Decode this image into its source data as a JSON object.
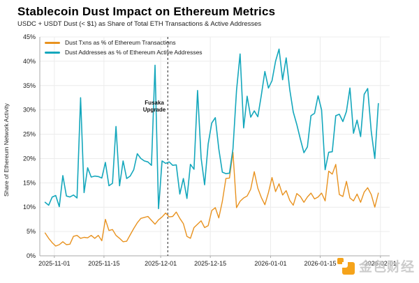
{
  "header": {
    "title": "Stablecoin Dust Impact on Ethereum Metrics",
    "subtitle": "USDC + USDT Dust (< $1) as Share of Total ETH Transactions & Active Addresses"
  },
  "watermark": {
    "text": "金色财经",
    "accent_color": "#F5A31A",
    "text_color": "#BBBBBB"
  },
  "chart_data": {
    "type": "line",
    "title": "Stablecoin Dust Impact on Ethereum Metrics",
    "subtitle": "USDC + USDT Dust (< $1) as Share of Total ETH Transactions & Active Addresses",
    "xlabel": "",
    "ylabel": "Share of Ethereum Network Activity",
    "ylim": [
      0,
      45
    ],
    "x_domain": [
      -1.5,
      97.2
    ],
    "x_unit": "days (daily data points, index 0 = first plotted day, late Oct 2025)",
    "grid": "on",
    "legend_position": "upper-left",
    "y_ticks": [
      {
        "v": 0,
        "label": "0%"
      },
      {
        "v": 5,
        "label": "5%"
      },
      {
        "v": 10,
        "label": "10%"
      },
      {
        "v": 15,
        "label": "15%"
      },
      {
        "v": 20,
        "label": "20%"
      },
      {
        "v": 25,
        "label": "25%"
      },
      {
        "v": 30,
        "label": "30%"
      },
      {
        "v": 35,
        "label": "35%"
      },
      {
        "v": 40,
        "label": "40%"
      },
      {
        "v": 45,
        "label": "45%"
      }
    ],
    "x_ticks": [
      {
        "day": 2.6,
        "label": "2025-11-01"
      },
      {
        "day": 16.6,
        "label": "2025-11-15"
      },
      {
        "day": 32.6,
        "label": "2025-12-01"
      },
      {
        "day": 46.6,
        "label": "2025-12-15"
      },
      {
        "day": 63.6,
        "label": "2026-01-01"
      },
      {
        "day": 77.6,
        "label": "2026-01-15"
      },
      {
        "day": 94.6,
        "label": "2026-02-01"
      }
    ],
    "annotation": {
      "line1": "Fusaka",
      "line2": "Upgrade",
      "day": 34.6,
      "style": "dashed-vertical-line"
    },
    "series": [
      {
        "name": "Dust Txns as % of Ethereum Transactions",
        "color": "#E8921F",
        "values": [
          4.7,
          3.6,
          2.7,
          2.0,
          2.3,
          2.9,
          2.3,
          2.4,
          4.0,
          4.2,
          3.6,
          3.8,
          3.7,
          4.2,
          3.6,
          4.2,
          3.1,
          7.5,
          5.2,
          5.4,
          4.2,
          3.6,
          2.9,
          3.0,
          4.3,
          5.6,
          6.8,
          7.7,
          7.9,
          8.1,
          7.3,
          6.5,
          7.4,
          8.0,
          8.8,
          8.0,
          8.1,
          9.0,
          7.7,
          6.6,
          4.0,
          3.6,
          5.8,
          6.5,
          7.2,
          5.8,
          6.2,
          9.3,
          9.9,
          7.8,
          11.2,
          15.9,
          16.0,
          21.3,
          9.9,
          11.2,
          11.9,
          12.3,
          13.7,
          17.3,
          13.9,
          12.0,
          10.5,
          13.0,
          16.1,
          13.2,
          14.8,
          12.5,
          13.4,
          11.4,
          10.4,
          12.8,
          12.2,
          11.0,
          12.1,
          12.9,
          11.7,
          12.1,
          12.9,
          11.3,
          17.4,
          16.8,
          18.8,
          12.6,
          12.2,
          15.3,
          11.9,
          11.3,
          12.7,
          11.0,
          13.1,
          14.0,
          12.6,
          10.0,
          12.9
        ]
      },
      {
        "name": "Dust Addresses as % of Ethereum Active Addresses",
        "color": "#14A7BC",
        "values": [
          11.0,
          10.4,
          12.1,
          12.4,
          10.1,
          16.5,
          12.3,
          12.1,
          12.5,
          11.9,
          32.5,
          13.0,
          18.1,
          16.2,
          16.4,
          16.3,
          16.0,
          19.2,
          14.4,
          14.9,
          26.6,
          14.4,
          19.5,
          15.9,
          16.4,
          17.7,
          21.0,
          20.0,
          19.5,
          19.3,
          18.6,
          39.2,
          9.7,
          19.5,
          19.0,
          19.3,
          18.6,
          18.7,
          12.7,
          15.9,
          11.8,
          18.8,
          17.8,
          34.0,
          20.1,
          14.6,
          23.0,
          27.3,
          28.4,
          22.0,
          17.2,
          16.9,
          17.0,
          22.0,
          34.0,
          41.5,
          26.3,
          32.8,
          28.5,
          29.8,
          28.6,
          33.0,
          37.9,
          34.5,
          36.0,
          40.0,
          42.5,
          36.2,
          40.7,
          34.2,
          29.6,
          27.0,
          24.0,
          21.2,
          22.4,
          28.8,
          29.3,
          32.9,
          30.0,
          17.7,
          21.3,
          21.4,
          28.8,
          29.1,
          27.6,
          29.7,
          34.5,
          25.2,
          27.9,
          24.5,
          33.2,
          34.4,
          25.6,
          20.0,
          31.3
        ]
      }
    ],
    "colors": {
      "grid": "#ECECEC",
      "spine": "#A9A9A9",
      "tick_text": "#1A1A1A",
      "annotation_line": "#222222"
    }
  }
}
